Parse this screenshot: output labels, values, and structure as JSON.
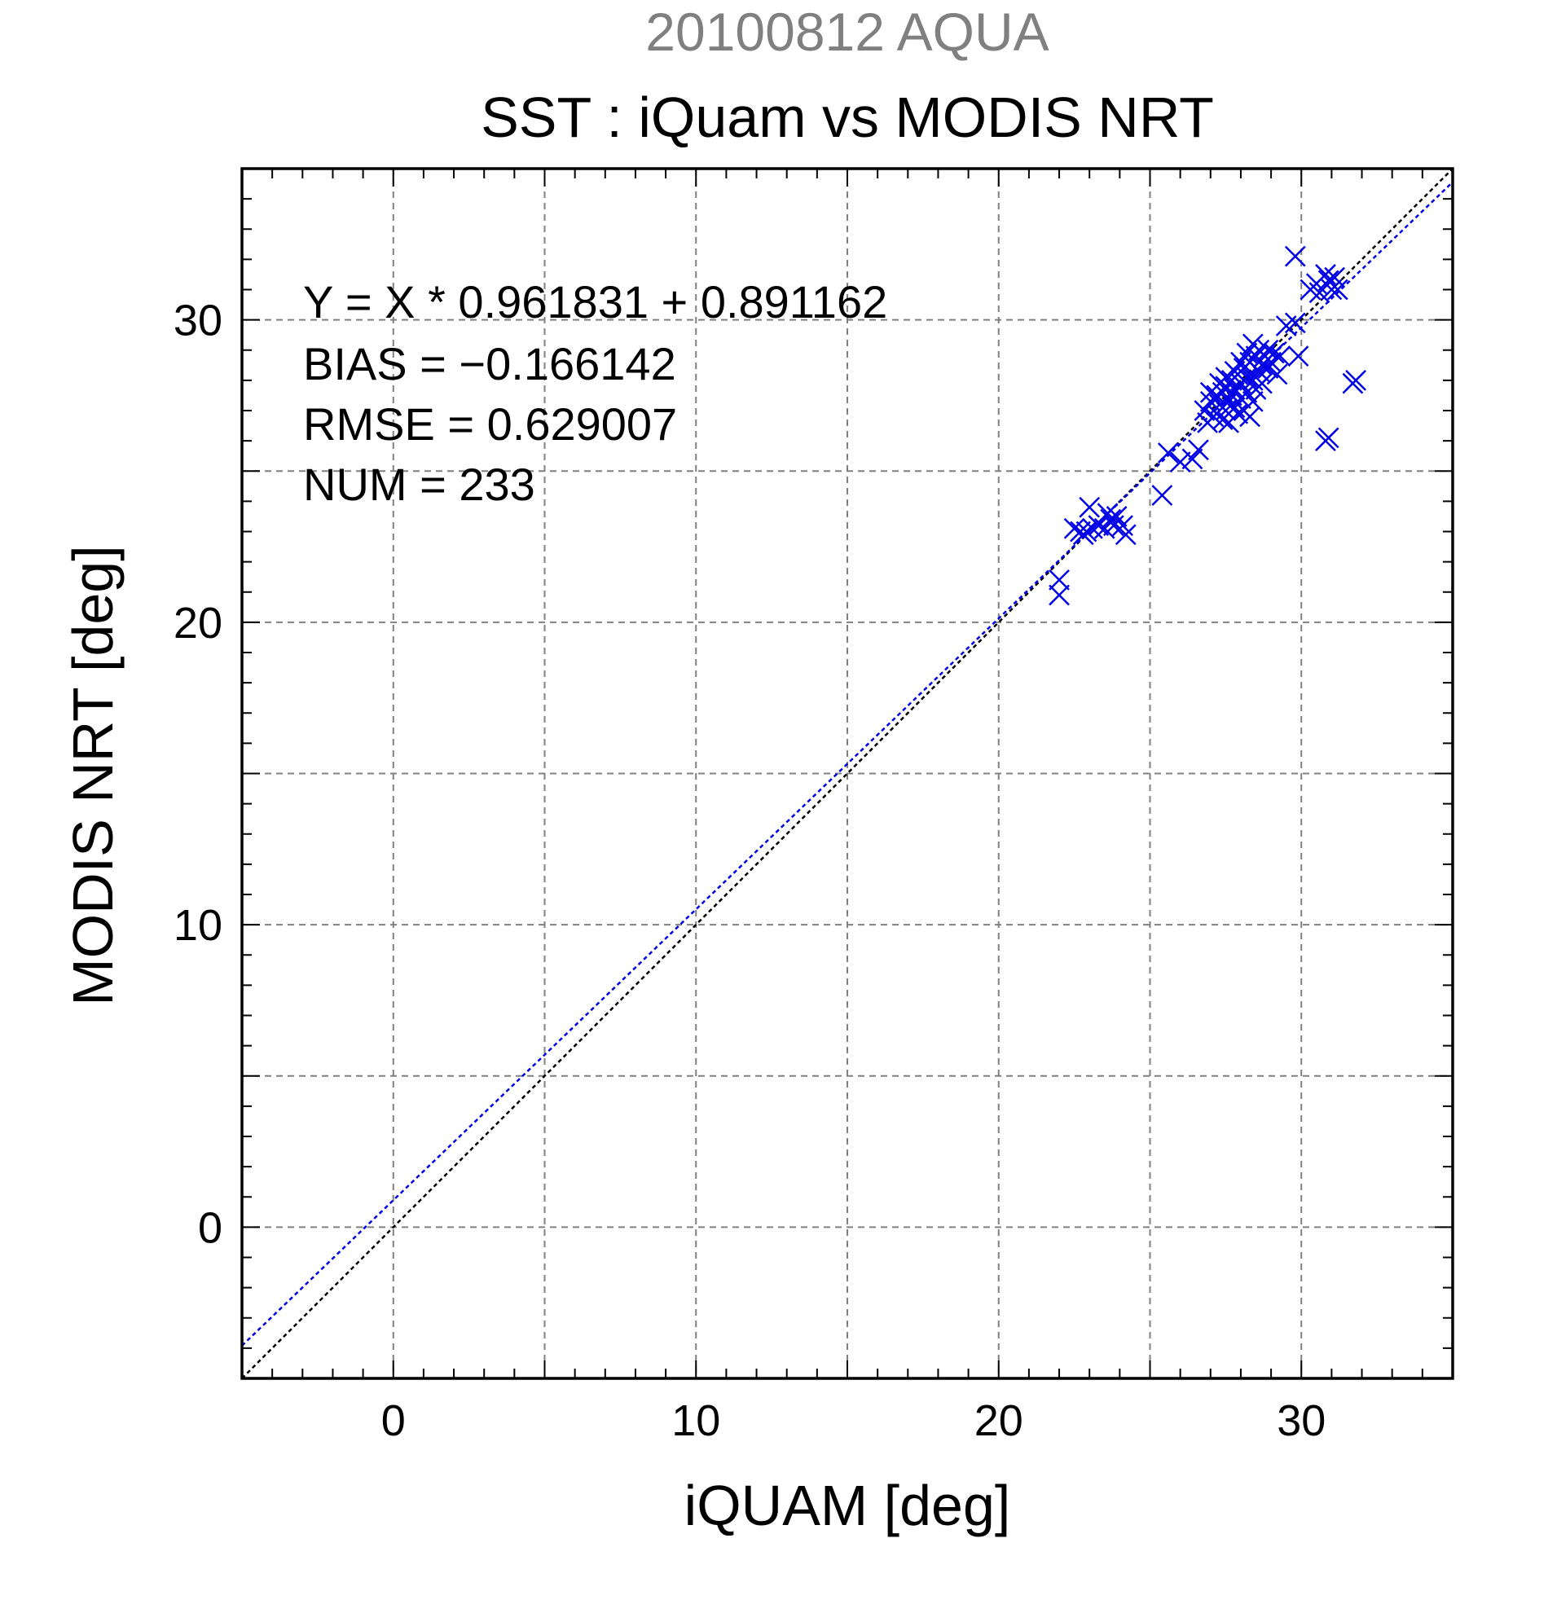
{
  "chart_data": {
    "type": "scatter",
    "title": "SST : iQuam vs MODIS NRT",
    "subtitle": "20100812 AQUA",
    "xlabel": "iQUAM [deg]",
    "ylabel": "MODIS NRT [deg]",
    "xlim": [
      -5,
      35
    ],
    "ylim": [
      -5,
      35
    ],
    "xticks": [
      0,
      10,
      20,
      30
    ],
    "yticks": [
      0,
      10,
      20,
      30
    ],
    "grid": true,
    "stats": [
      "Y = X * 0.961831 + 0.891162",
      "BIAS = −0.166142",
      "RMSE = 0.629007",
      "NUM = 233"
    ],
    "fit": {
      "slope": 0.961831,
      "intercept": 0.891162
    },
    "colors": {
      "points": "#0000e6",
      "fit_line": "#0000e6",
      "identity_line": "#000000",
      "grid": "#808080",
      "subtitle": "#808080",
      "text": "#000000"
    },
    "series": [
      {
        "marker": "x",
        "points": [
          [
            22.0,
            21.4
          ],
          [
            22.0,
            20.9
          ],
          [
            22.5,
            23.1
          ],
          [
            22.7,
            23.0
          ],
          [
            22.9,
            23.0
          ],
          [
            23.1,
            23.1
          ],
          [
            22.8,
            22.9
          ],
          [
            23.0,
            23.8
          ],
          [
            23.3,
            23.2
          ],
          [
            23.5,
            23.1
          ],
          [
            23.6,
            23.6
          ],
          [
            23.7,
            23.4
          ],
          [
            23.8,
            23.2
          ],
          [
            23.9,
            23.5
          ],
          [
            24.1,
            23.2
          ],
          [
            24.2,
            22.9
          ],
          [
            25.4,
            24.2
          ],
          [
            25.6,
            25.6
          ],
          [
            26.0,
            25.3
          ],
          [
            26.4,
            25.4
          ],
          [
            26.6,
            25.7
          ],
          [
            26.8,
            27.0
          ],
          [
            26.9,
            26.6
          ],
          [
            27.0,
            27.3
          ],
          [
            27.1,
            26.8
          ],
          [
            27.2,
            27.5
          ],
          [
            27.2,
            26.9
          ],
          [
            27.3,
            27.2
          ],
          [
            27.4,
            27.6
          ],
          [
            27.4,
            26.7
          ],
          [
            27.5,
            27.0
          ],
          [
            27.5,
            27.8
          ],
          [
            27.6,
            27.3
          ],
          [
            27.6,
            26.6
          ],
          [
            27.7,
            27.5
          ],
          [
            27.7,
            28.0
          ],
          [
            27.8,
            27.1
          ],
          [
            27.8,
            27.7
          ],
          [
            27.9,
            26.9
          ],
          [
            27.9,
            28.2
          ],
          [
            28.0,
            27.4
          ],
          [
            28.0,
            27.9
          ],
          [
            28.1,
            28.4
          ],
          [
            28.1,
            27.0
          ],
          [
            28.2,
            27.6
          ],
          [
            28.2,
            28.1
          ],
          [
            28.3,
            28.6
          ],
          [
            28.3,
            26.8
          ],
          [
            28.4,
            27.3
          ],
          [
            28.4,
            28.0
          ],
          [
            28.5,
            28.8
          ],
          [
            28.5,
            27.7
          ],
          [
            28.6,
            28.3
          ],
          [
            28.6,
            29.0
          ],
          [
            28.7,
            28.5
          ],
          [
            28.7,
            27.9
          ],
          [
            28.8,
            28.8
          ],
          [
            28.9,
            29.0
          ],
          [
            29.0,
            28.6
          ],
          [
            29.1,
            28.9
          ],
          [
            29.2,
            28.2
          ],
          [
            28.0,
            28.6
          ],
          [
            27.8,
            28.3
          ],
          [
            27.5,
            28.1
          ],
          [
            27.3,
            27.9
          ],
          [
            27.0,
            27.6
          ],
          [
            28.2,
            28.9
          ],
          [
            28.4,
            29.2
          ],
          [
            28.9,
            28.4
          ],
          [
            29.3,
            28.8
          ],
          [
            29.5,
            29.8
          ],
          [
            29.8,
            29.9
          ],
          [
            29.9,
            28.8
          ],
          [
            30.3,
            31.0
          ],
          [
            30.5,
            31.2
          ],
          [
            30.6,
            30.9
          ],
          [
            30.8,
            31.5
          ],
          [
            30.9,
            31.3
          ],
          [
            31.0,
            31.0
          ],
          [
            31.1,
            31.4
          ],
          [
            31.2,
            31.0
          ],
          [
            29.8,
            32.1
          ],
          [
            31.7,
            27.9
          ],
          [
            31.8,
            28.0
          ],
          [
            30.8,
            26.0
          ],
          [
            30.9,
            26.1
          ]
        ]
      }
    ]
  }
}
